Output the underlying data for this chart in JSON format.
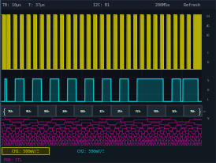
{
  "bg_color": "#0d1117",
  "screen_bg": "#050a10",
  "header_bg": "#151c28",
  "header_text_left": "TB: 10μs   T: 37μs",
  "header_text_mid": "I2C: B1",
  "header_text_right": "200MSa      Refresh",
  "header_color": "#b0b8c0",
  "ch1_color": "#d4cc00",
  "ch1_fill": "#c8c000",
  "ch2_color": "#00c8d4",
  "pod_color_hi": "#e000a8",
  "pod_color_lo": "#a80078",
  "decode_bg": "#181828",
  "decode_border": "#606878",
  "decode_text_color": "#e0e0e0",
  "decode_labels": [
    "76h",
    "01h",
    "06h",
    "24h",
    "04h",
    "1Ch",
    "25h",
    "F2h",
    "50h",
    "32h",
    "7Ah"
  ],
  "footer_ch1": "CH1: 500mV/Ξ",
  "footer_ch2": "CH2: 500mV/Ξ",
  "footer_pod": "POD: TTL",
  "footer_bg": "#101820",
  "footer_ch1_bg": "#303000",
  "sidebar_bg": "#101820",
  "sidebar_color": "#909898",
  "grid_color": "#1a2840",
  "border_color": "#405060"
}
